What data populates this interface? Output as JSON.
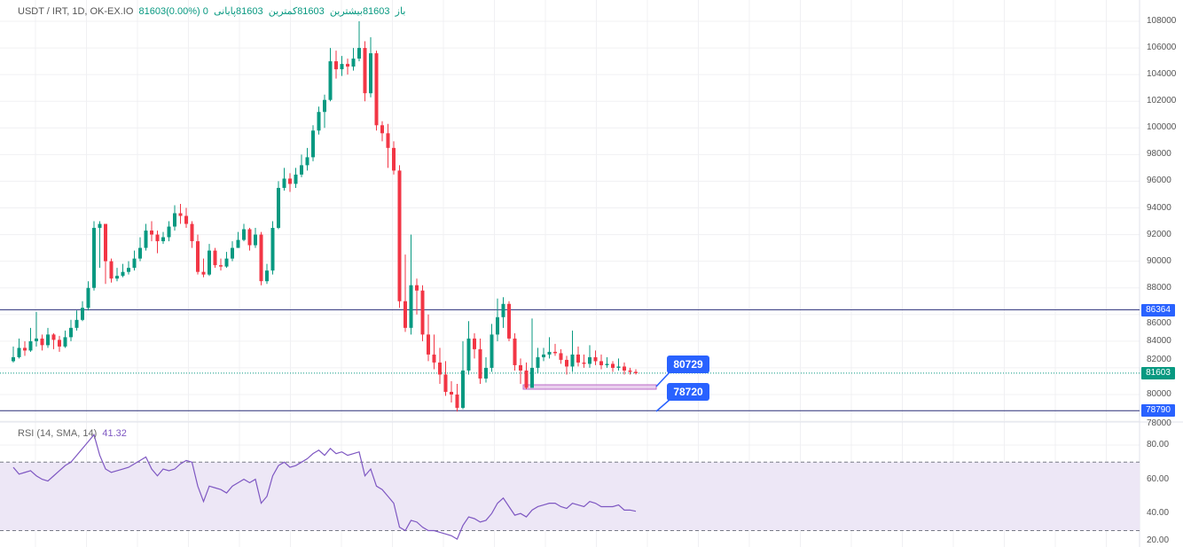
{
  "legend": {
    "symbol": "USDT / IRT, 1D, OK-EX.IO",
    "open_label": "باز",
    "open": "81603",
    "high_label": "بیشترین",
    "high": "81603",
    "low_label": "کمترین",
    "low": "81603",
    "close_label": "پایانی",
    "close": "81603",
    "change": "0 (0.00%)"
  },
  "rsi_legend": {
    "name": "RSI (14, SMA, 14)",
    "value": "41.32"
  },
  "colors": {
    "up": "#089981",
    "down": "#f23645",
    "line": "#2962ff",
    "rsi": "#7e57c2",
    "rsi_band": "#ede7f6",
    "zone": "#e1bee7"
  },
  "price_axis": {
    "ticks": [
      "108000",
      "106000",
      "104000",
      "102000",
      "100000",
      "98000",
      "96000",
      "94000",
      "92000",
      "90000",
      "88000",
      "86000",
      "84000",
      "82000",
      "80000",
      "78000"
    ]
  },
  "rsi_axis": {
    "ticks": [
      "80.00",
      "60.00",
      "40.00",
      "20.00"
    ]
  },
  "tags": {
    "upper_line": "86364",
    "last_price": "81603",
    "lower_line": "78790"
  },
  "callouts": {
    "top": "80729",
    "bottom": "78720"
  },
  "chart_data": {
    "type": "candlestick",
    "ylim": [
      78000,
      108000
    ],
    "first_open": 82500,
    "close": [
      82800,
      83500,
      83300,
      84000,
      84200,
      83700,
      84500,
      84100,
      83600,
      84300,
      85000,
      85600,
      86500,
      88000,
      92500,
      92800,
      90000,
      88700,
      88900,
      89200,
      89500,
      90200,
      91000,
      92300,
      92000,
      91500,
      91800,
      92600,
      93600,
      93400,
      92800,
      91500,
      89200,
      89000,
      90800,
      89700,
      89600,
      90200,
      91000,
      91600,
      92400,
      91200,
      92000,
      88500,
      89300,
      92500,
      95500,
      96200,
      95800,
      96500,
      97200,
      97800,
      99800,
      101200,
      102100,
      105000,
      104400,
      104800,
      104600,
      105200,
      106000,
      102600,
      105600,
      100200,
      99600,
      98500,
      96800,
      87000,
      85000,
      88200,
      87800,
      84500,
      83000,
      82400,
      81500,
      80200,
      80000,
      79000,
      81800,
      84200,
      83400,
      81200,
      82000,
      84500,
      85800,
      86800,
      84200,
      82200,
      81800,
      80500,
      82000,
      82800,
      83000,
      83200,
      83100,
      82600,
      82100,
      83000,
      82400,
      82300,
      82800,
      82500,
      82200,
      82300,
      82000,
      82100,
      81800,
      81700,
      81603
    ],
    "high": [
      83600,
      84200,
      84000,
      85000,
      86200,
      84500,
      85000,
      84600,
      84400,
      84800,
      85600,
      86300,
      87000,
      88500,
      93000,
      93000,
      92600,
      90200,
      89500,
      89800,
      90000,
      90800,
      91800,
      92800,
      93000,
      92300,
      92200,
      93000,
      94200,
      94300,
      94000,
      93000,
      92000,
      90200,
      91300,
      91000,
      90200,
      90700,
      91500,
      92200,
      92800,
      92500,
      92500,
      92200,
      89800,
      93000,
      96000,
      97000,
      96600,
      97000,
      98000,
      98500,
      100200,
      101600,
      102500,
      106000,
      105800,
      105400,
      105200,
      106000,
      108000,
      106500,
      106800,
      105800,
      100500,
      100300,
      99000,
      97200,
      90500,
      92000,
      88700,
      88200,
      86000,
      84500,
      83500,
      82500,
      81000,
      80800,
      84000,
      85500,
      84600,
      84200,
      82800,
      85300,
      87200,
      87300,
      87000,
      84600,
      82700,
      82400,
      85700,
      83500,
      83500,
      84300,
      83800,
      83400,
      82900,
      84800,
      83600,
      83000,
      83700,
      83300,
      83000,
      82800,
      82500,
      82700,
      82400,
      82000,
      81900
    ],
    "low": [
      82400,
      82700,
      82900,
      83200,
      83600,
      83300,
      83500,
      83400,
      83200,
      83500,
      84000,
      84800,
      85500,
      86300,
      87800,
      89500,
      88300,
      88400,
      88500,
      88800,
      89000,
      89300,
      90000,
      90800,
      91500,
      90600,
      91300,
      91500,
      92300,
      92800,
      92500,
      91000,
      89000,
      88800,
      88900,
      89500,
      89300,
      89500,
      90000,
      91000,
      91500,
      90800,
      91000,
      88200,
      88300,
      89000,
      92400,
      95300,
      95200,
      95500,
      96300,
      96800,
      97500,
      99500,
      100000,
      102000,
      103700,
      103900,
      104000,
      104300,
      105000,
      102000,
      102300,
      99800,
      99000,
      97000,
      96500,
      86500,
      84700,
      84500,
      86000,
      84000,
      82500,
      81900,
      80800,
      79900,
      79400,
      78720,
      78900,
      81500,
      82700,
      80800,
      80900,
      81700,
      84000,
      85000,
      84000,
      81800,
      80800,
      80400,
      80500,
      81600,
      82500,
      82700,
      82900,
      82300,
      81500,
      81700,
      82100,
      82000,
      82000,
      82200,
      81900,
      82000,
      81700,
      81800,
      81500,
      81500,
      81500
    ],
    "horizontal_lines": [
      86364,
      78790
    ],
    "last_price": 81603,
    "zone": [
      80729,
      80400
    ],
    "rsi": {
      "ylim": [
        20,
        90
      ],
      "upper_band": 70,
      "lower_band": 30,
      "values": [
        67,
        63,
        64,
        65,
        62,
        60,
        59,
        62,
        65,
        68,
        70,
        74,
        78,
        82,
        86,
        74,
        66,
        64,
        65,
        66,
        67,
        69,
        71,
        73,
        66,
        62,
        66,
        65,
        66,
        69,
        71,
        70,
        56,
        47,
        56,
        55,
        54,
        52,
        56,
        58,
        60,
        58,
        60,
        46,
        50,
        62,
        68,
        70,
        67,
        68,
        70,
        72,
        75,
        77,
        74,
        78,
        75,
        76,
        74,
        75,
        76,
        62,
        66,
        56,
        54,
        50,
        46,
        32,
        30,
        36,
        35,
        32,
        30,
        30,
        29,
        28,
        27,
        25,
        33,
        38,
        37,
        35,
        36,
        40,
        46,
        49,
        44,
        39,
        40,
        38,
        42,
        44,
        45,
        46,
        46,
        44,
        43,
        46,
        45,
        44,
        47,
        46,
        44,
        44,
        44,
        45,
        42,
        42,
        41.32
      ]
    }
  }
}
